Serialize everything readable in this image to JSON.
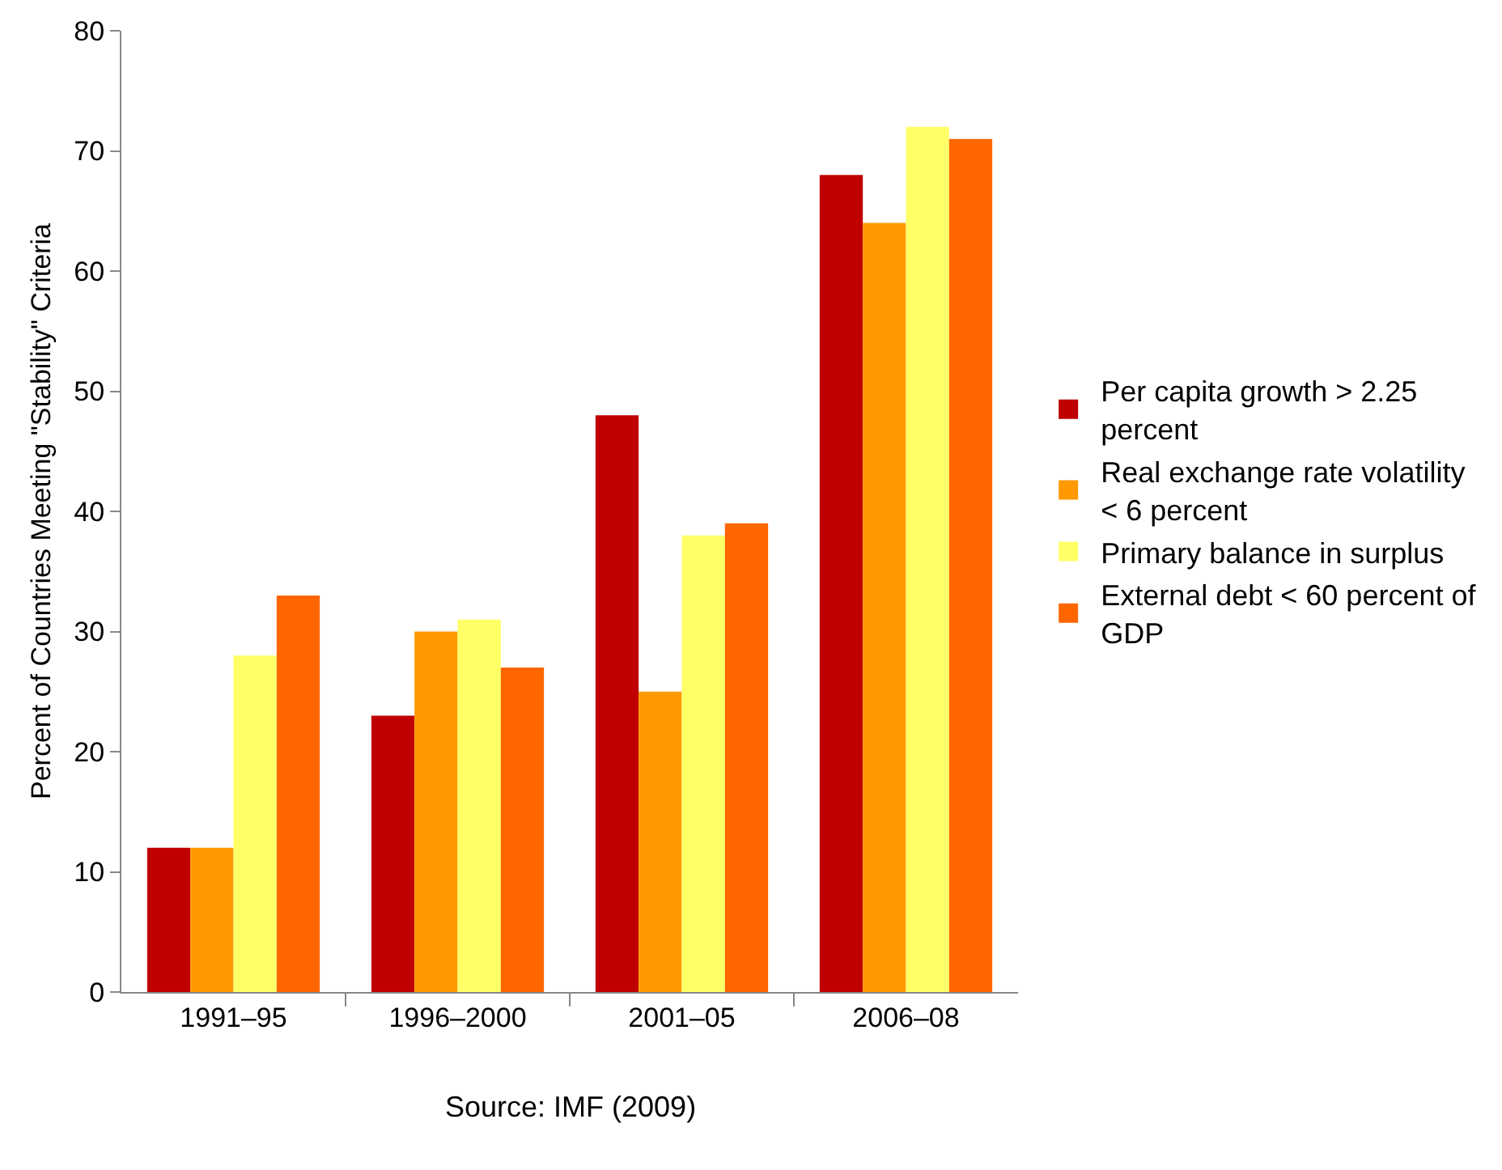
{
  "chart_data": {
    "type": "bar",
    "ylabel": "Percent of Countries Meeting \"Stability\" Criteria",
    "categories": [
      "1991–95",
      "1996–2000",
      "2001–05",
      "2006–08"
    ],
    "series": [
      {
        "name": "Per capita growth > 2.25 percent",
        "color": "#c00000",
        "values": [
          12,
          23,
          48,
          68
        ]
      },
      {
        "name": "Real exchange rate volatility < 6 percent",
        "color": "#ff9900",
        "values": [
          12,
          30,
          25,
          64
        ]
      },
      {
        "name": "Primary balance in surplus",
        "color": "#ffff66",
        "values": [
          28,
          31,
          38,
          72
        ]
      },
      {
        "name": "External debt < 60 percent of GDP",
        "color": "#ff6600",
        "values": [
          33,
          27,
          39,
          71
        ]
      }
    ],
    "ylim": [
      0,
      80
    ],
    "yticks": [
      0,
      10,
      20,
      30,
      40,
      50,
      60,
      70,
      80
    ],
    "grid": false,
    "legend": "right",
    "annotations": [
      "Source: IMF (2009)"
    ]
  }
}
